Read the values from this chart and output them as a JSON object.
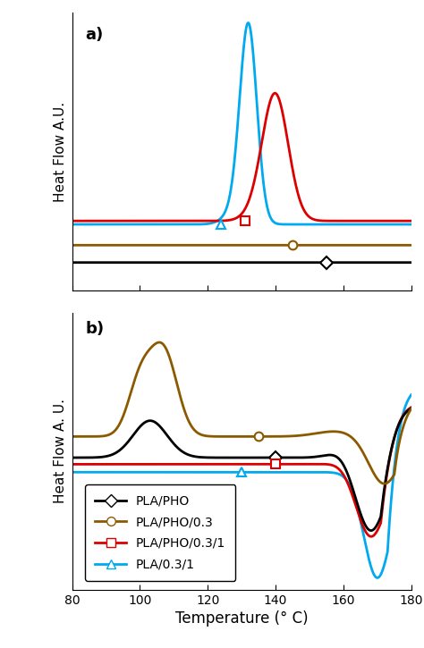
{
  "title_a": "a)",
  "title_b": "b)",
  "xlabel": "Temperature (° C)",
  "ylabel_a": "Heat Flow A.U.",
  "ylabel_b": "Heat Flow A. U.",
  "xlim": [
    80,
    180
  ],
  "xticks": [
    80,
    100,
    120,
    140,
    160,
    180
  ],
  "colors": {
    "black": "#000000",
    "brown": "#8B5A00",
    "red": "#DD0000",
    "cyan": "#00AAEE"
  },
  "legend_labels": [
    "PLA/PHO",
    "PLA/PHO/0.3",
    "PLA/PHO/0.3/1",
    "PLA/0.3/1"
  ],
  "legend_colors": [
    "#000000",
    "#8B5A00",
    "#DD0000",
    "#00AAEE"
  ]
}
